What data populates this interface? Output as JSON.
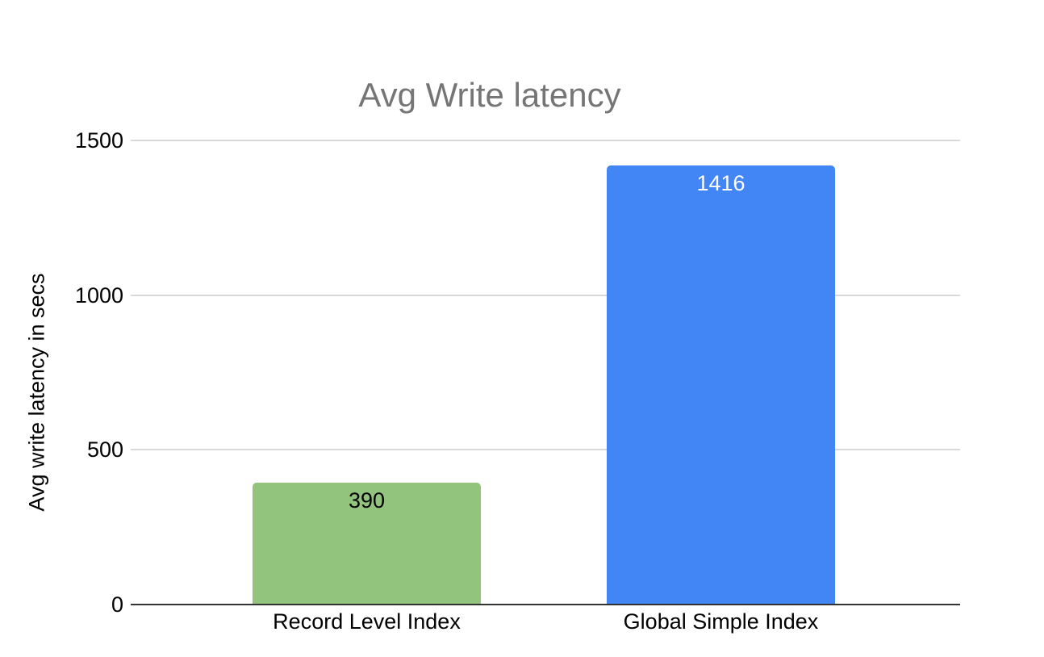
{
  "chart_data": {
    "type": "bar",
    "title": "Avg Write latency",
    "xlabel": "",
    "ylabel": "Avg write latency in secs",
    "categories": [
      "Record Level Index",
      "Global Simple Index"
    ],
    "series": [
      {
        "name": "Avg write latency in secs",
        "values": [
          390,
          1416
        ]
      }
    ],
    "values": [
      390,
      1416
    ],
    "value_labels": [
      "390",
      "1416"
    ],
    "yticks": [
      0,
      500,
      1000,
      1500
    ],
    "ytick_labels": [
      "0",
      "500",
      "1000",
      "1500"
    ],
    "ylim": [
      0,
      1500
    ],
    "grid": true,
    "legend_position": "none",
    "bar_colors": [
      "#93c47d",
      "#4285f4"
    ],
    "value_label_colors": [
      "#000000",
      "#ffffff"
    ],
    "title_color": "#757575",
    "gridline_color": "#d9d9d9",
    "axis_line_color": "#333333",
    "background_color": "#ffffff"
  }
}
